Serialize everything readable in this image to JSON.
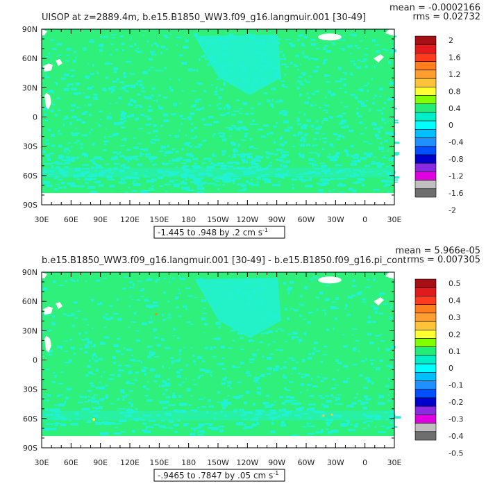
{
  "chart_data": [
    {
      "type": "heatmap",
      "title": "UISOP at z=2889.4m, b.e15.B1850_WW3.f09_g16.langmuir.001 [30-49]",
      "stats": {
        "mean": "mean = -0.0002166",
        "rms": "rms = 0.02732"
      },
      "range_label": "-1.445 to .948 by .2 cm s",
      "range_sup": "-1",
      "x_tick_labels": [
        "30E",
        "60E",
        "90E",
        "120E",
        "150E",
        "180",
        "150W",
        "120W",
        "90W",
        "60W",
        "30W",
        "0",
        "30E"
      ],
      "y_tick_labels": [
        "90N",
        "60N",
        "30N",
        "0",
        "30S",
        "60S",
        "90S"
      ],
      "legend": {
        "levels": [
          "2",
          "1.6",
          "1.2",
          "0.8",
          "0.4",
          "0",
          "-0.4",
          "-0.8",
          "-1.2",
          "-1.6",
          "-2"
        ],
        "colors": [
          "#a50f15",
          "#e31a1c",
          "#ff3b1f",
          "#ff7f1f",
          "#ff9f2f",
          "#ffc33a",
          "#ffff33",
          "#7fff00",
          "#22ee77",
          "#00eec8",
          "#00ffff",
          "#00bfff",
          "#1e90ff",
          "#0050ff",
          "#0000cd",
          "#8a2be2",
          "#e000e0",
          "#c0c0c0",
          "#6e6e6e"
        ]
      },
      "field": {
        "ocean_color": "#2ff07a",
        "pattern_color": "#21f2d6",
        "land_color": "#ffffff"
      }
    },
    {
      "type": "heatmap",
      "title": "b.e15.B1850_WW3.f09_g16.langmuir.001 [30-49] - b.e15.B1850.f09_g16.pi_cont",
      "stats": {
        "mean": "mean = 5.966e-05",
        "rms": "rms = 0.007305"
      },
      "range_label": "-.9465 to .7847 by .05 cm s",
      "range_sup": "-1",
      "x_tick_labels": [
        "30E",
        "60E",
        "90E",
        "120E",
        "150E",
        "180",
        "150W",
        "120W",
        "90W",
        "60W",
        "30W",
        "0",
        "30E"
      ],
      "y_tick_labels": [
        "90N",
        "60N",
        "30N",
        "0",
        "30S",
        "60S",
        "90S"
      ],
      "legend": {
        "levels": [
          "0.5",
          "0.4",
          "0.3",
          "0.2",
          "0.1",
          "0",
          "-0.1",
          "-0.2",
          "-0.3",
          "-0.4",
          "-0.5"
        ],
        "colors": [
          "#a50f15",
          "#e31a1c",
          "#ff3b1f",
          "#ff7f1f",
          "#ff9f2f",
          "#ffc33a",
          "#ffff33",
          "#7fff00",
          "#22ee77",
          "#00eec8",
          "#00ffff",
          "#00bfff",
          "#1e90ff",
          "#0050ff",
          "#0000cd",
          "#8a2be2",
          "#e000e0",
          "#c0c0c0",
          "#6e6e6e"
        ]
      },
      "field": {
        "ocean_color": "#2ff07a",
        "pattern_color": "#21f2d6",
        "land_color": "#ffffff"
      }
    }
  ]
}
